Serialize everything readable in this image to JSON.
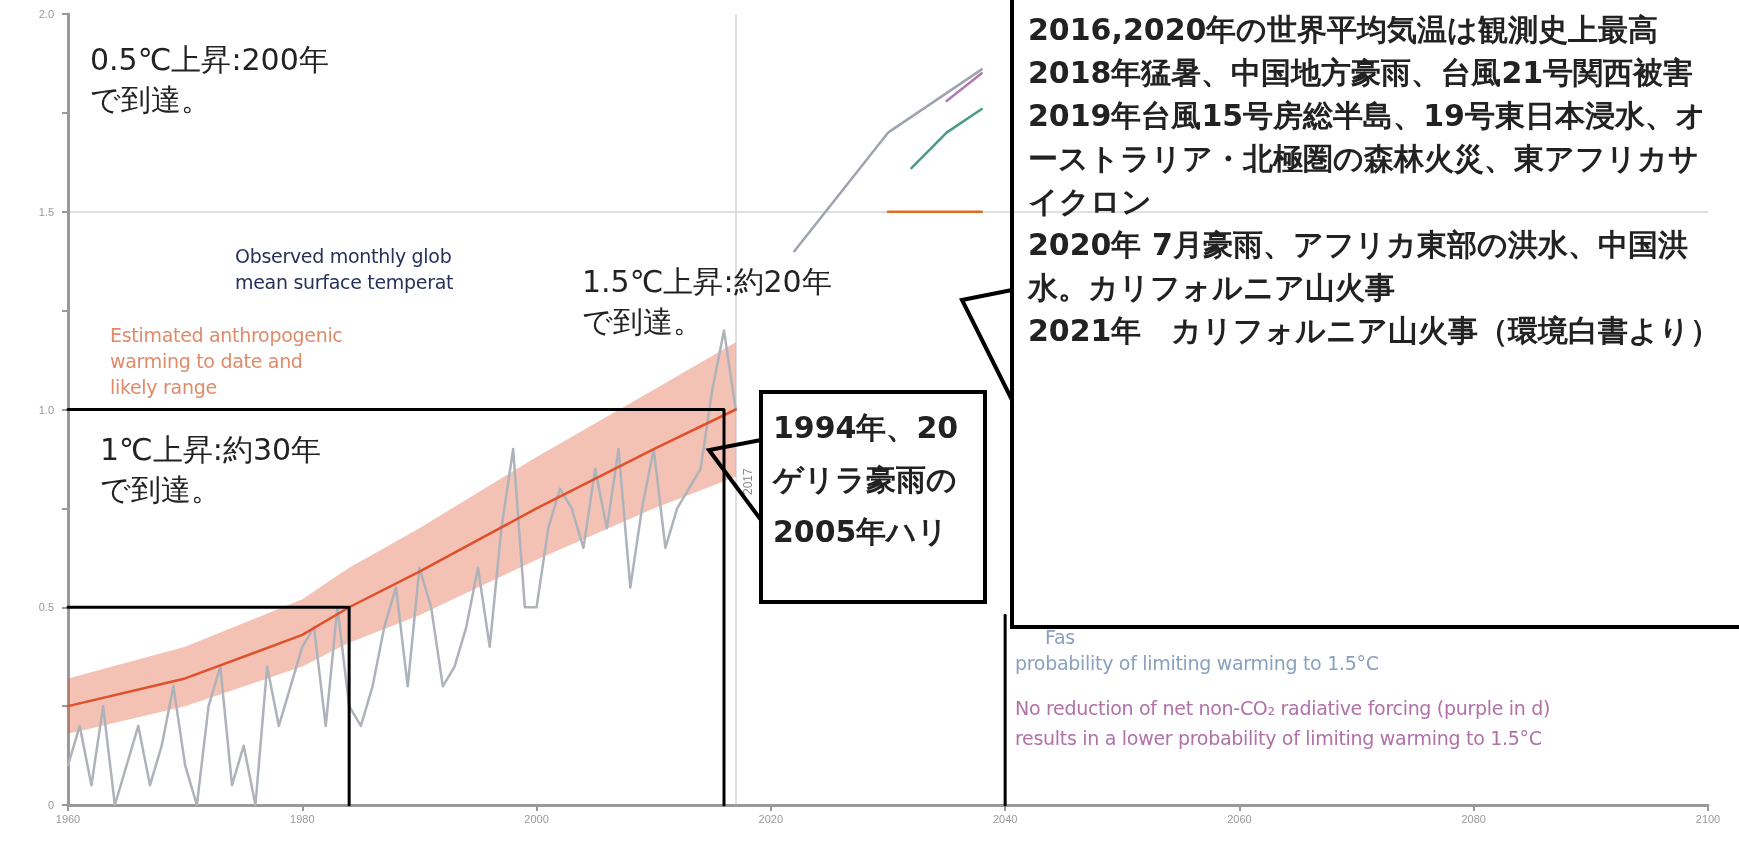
{
  "chart_data": {
    "type": "line",
    "xlim": [
      1960,
      2100
    ],
    "xticks": [
      1960,
      1980,
      2000,
      2020,
      2040,
      2060,
      2080,
      2100
    ],
    "ylim": [
      0,
      2.0
    ],
    "yticks": [
      0,
      {
        "value": 0.25,
        "label": null
      },
      0.5,
      {
        "value": 0.75,
        "label": null
      },
      {
        "value": 1.0,
        "label": "1.0"
      },
      {
        "value": 1.25,
        "label": null
      },
      1.5,
      {
        "value": 1.75,
        "label": null
      },
      {
        "value": 2.0,
        "label": "2.0"
      }
    ],
    "grid": false,
    "series": [
      {
        "color": "#aeb2ba",
        "x": [
          1960,
          1961,
          1962,
          1963,
          1964,
          1965,
          1966,
          1967,
          1968,
          1969,
          1970,
          1971,
          1972,
          1973,
          1974,
          1975,
          1976,
          1977,
          1978,
          1979,
          1980,
          1981,
          1982,
          1983,
          1984,
          1985,
          1986,
          1987,
          1988,
          1989,
          1990,
          1991,
          1992,
          1993,
          1994,
          1995,
          1996,
          1997,
          1998,
          1999,
          2000,
          2001,
          2002,
          2003,
          2004,
          2005,
          2006,
          2007,
          2008,
          2009,
          2010,
          2011,
          2012,
          2013,
          2014,
          2015,
          2016,
          2017
        ],
        "values": [
          0.1,
          0.2,
          0.05,
          0.25,
          0.0,
          0.1,
          0.2,
          0.05,
          0.15,
          0.3,
          0.1,
          0.0,
          0.25,
          0.35,
          0.05,
          0.15,
          0.0,
          0.35,
          0.2,
          0.3,
          0.4,
          0.45,
          0.2,
          0.5,
          0.25,
          0.2,
          0.3,
          0.45,
          0.55,
          0.3,
          0.6,
          0.5,
          0.3,
          0.35,
          0.45,
          0.6,
          0.4,
          0.7,
          0.9,
          0.5,
          0.5,
          0.7,
          0.8,
          0.75,
          0.65,
          0.85,
          0.7,
          0.9,
          0.55,
          0.75,
          0.9,
          0.65,
          0.75,
          0.8,
          0.85,
          1.05,
          1.2,
          1.0
        ]
      },
      {
        "color": "#e0502a",
        "x": [
          1960,
          1970,
          1980,
          1984,
          1990,
          2000,
          2010,
          2017
        ],
        "values": [
          0.25,
          0.32,
          0.43,
          0.5,
          0.59,
          0.75,
          0.9,
          1.0
        ],
        "lower": [
          0.18,
          0.25,
          0.35,
          0.41,
          0.48,
          0.62,
          0.75,
          0.83
        ],
        "upper": [
          0.32,
          0.4,
          0.52,
          0.6,
          0.7,
          0.88,
          1.05,
          1.17
        ]
      },
      {
        "color": "#e06a20",
        "x": [
          2030,
          2038
        ],
        "values": [
          1.5,
          1.5
        ]
      },
      {
        "color": "#9ea3ae",
        "x": [
          2022,
          2030,
          2038
        ],
        "values": [
          1.4,
          1.7,
          1.86
        ]
      },
      {
        "color": "#4a9a8a",
        "x": [
          2032,
          2035,
          2038
        ],
        "values": [
          1.61,
          1.7,
          1.76
        ]
      },
      {
        "color": "#b07ab0",
        "x": [
          2035,
          2038
        ],
        "values": [
          1.78,
          1.85
        ]
      },
      {
        "color": "#000000",
        "x": [
          1960,
          1984,
          1984
        ],
        "values": [
          0.5,
          0.5,
          0
        ]
      },
      {
        "color": "#000000",
        "x": [
          1960,
          2016,
          2016
        ],
        "values": [
          1.0,
          1.0,
          0
        ]
      },
      {
        "color": "#000000",
        "x": [
          2040,
          2040
        ],
        "values": [
          0,
          0.48
        ]
      }
    ],
    "ref_lines": [
      {
        "axis": "y",
        "value": 1.5,
        "label": null,
        "color": "#d4d4d4"
      },
      {
        "axis": "x",
        "value": 2017,
        "label": "2017",
        "color": "#d4d4d4"
      }
    ],
    "annotations": [
      "Observed monthly glob\nmean surface temperat",
      "Estimated anthropogenic\nwarming to date and\nlikely range",
      "1.5℃上昇:約20年で到達。",
      "1℃上昇:約30年で到達。",
      "0.5℃上昇:200年で到達。",
      "1994年、20\nゲリラ豪雨の\n2005年ハリ",
      "2016,2020年の世界平均気温は観測史上最高\n2018年猛暑、中国地方豪雨、台風21号関西被害\n2019年台風15号房総半島、19号東日本浸水、オーストラリア・北極圏の森林火災、東アフリカサイクロン\n2020年 7月豪雨、アフリカ東部の洪水、中国洪水。カリフォルニア山火事\n2021年　カリフォルニア山火事（環境白書より）",
      "Fas",
      "probability of limiting warming to 1.5°C",
      "No reduction of net non-CO₂ radiative forcing (purple in d)\nresults in a lower probability of limiting warming to 1.5°C"
    ]
  }
}
